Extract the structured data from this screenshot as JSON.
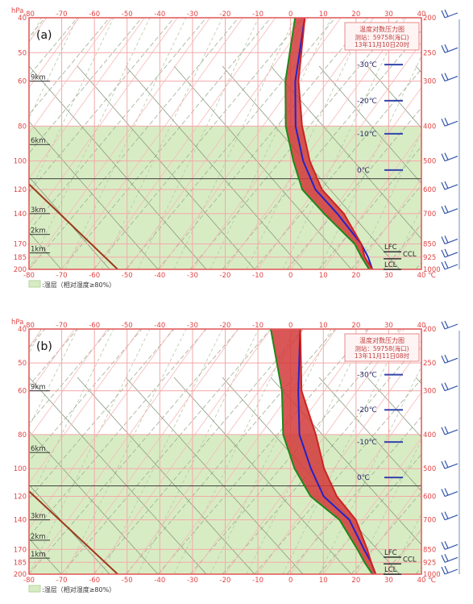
{
  "chart_data": [
    {
      "type": "line",
      "panel_label": "(a)",
      "box_title": "温度对数压力图",
      "box_station": "测站：59758(海口)",
      "box_time": "13年11月10日20时",
      "x_unit": "℃",
      "y_unit": "hPa",
      "x_ticks": [
        -80,
        -70,
        -60,
        -50,
        -40,
        -30,
        -20,
        -10,
        0,
        10,
        20,
        30,
        40
      ],
      "xlim": [
        -80,
        40
      ],
      "left_ticks": [
        "40",
        "50",
        "60",
        "80",
        "100",
        "120",
        "140",
        "170",
        "185",
        "200"
      ],
      "right_ticks": [
        "200",
        "250",
        "300",
        "400",
        "500",
        "600",
        "700",
        "850",
        "925",
        "1000"
      ],
      "height_labels": [
        "9km",
        "6km",
        "3km",
        "2km",
        "1km"
      ],
      "isotherms": [
        {
          "label": "-30℃",
          "value": -30
        },
        {
          "label": "-20℃",
          "value": -20
        },
        {
          "label": "-10℃",
          "value": -10
        },
        {
          "label": "0℃",
          "value": 0
        }
      ],
      "level_labels": [
        "EL",
        "LFC",
        "CCL",
        "LCL"
      ],
      "humid_bands_p": [
        [
          400,
          850
        ],
        [
          850,
          1000
        ]
      ],
      "series": [
        {
          "color": "#2222cc",
          "points": [
            [
              -51,
              200
            ],
            [
              -40,
              300
            ],
            [
              -30,
              400
            ],
            [
              -20,
              500
            ],
            [
              -10,
              600
            ],
            [
              2,
              700
            ],
            [
              16,
              850
            ],
            [
              21,
              925
            ],
            [
              25,
              1000
            ]
          ]
        },
        {
          "color": "#1b8a1b",
          "points": [
            [
              -54,
              200
            ],
            [
              -43,
              300
            ],
            [
              -33,
              400
            ],
            [
              -23,
              500
            ],
            [
              -14,
              600
            ],
            [
              -2,
              700
            ],
            [
              14,
              850
            ],
            [
              19,
              925
            ],
            [
              24,
              1000
            ]
          ]
        },
        {
          "color": "#cc2222",
          "points": [
            [
              -51,
              200
            ],
            [
              -39,
              300
            ],
            [
              -28,
              400
            ],
            [
              -18,
              500
            ],
            [
              -8,
              600
            ],
            [
              4,
              700
            ],
            [
              16,
              850
            ],
            [
              20,
              925
            ],
            [
              25,
              1000
            ]
          ]
        }
      ],
      "legend": ":湿层（相对湿度≥80%）"
    },
    {
      "type": "line",
      "panel_label": "(b)",
      "box_title": "温度对数压力图",
      "box_station": "测站：59758(海口)",
      "box_time": "13年11月11日08时",
      "x_unit": "℃",
      "y_unit": "hPa",
      "x_ticks": [
        -80,
        -70,
        -60,
        -50,
        -40,
        -30,
        -20,
        -10,
        0,
        10,
        20,
        30,
        40
      ],
      "xlim": [
        -80,
        40
      ],
      "left_ticks": [
        "40",
        "50",
        "60",
        "80",
        "100",
        "120",
        "140",
        "170",
        "185",
        "200"
      ],
      "right_ticks": [
        "200",
        "250",
        "300",
        "400",
        "500",
        "600",
        "700",
        "850",
        "925",
        "1000"
      ],
      "height_labels": [
        "9km",
        "6km",
        "3km",
        "2km",
        "1km"
      ],
      "isotherms": [
        {
          "label": "-30℃",
          "value": -30
        },
        {
          "label": "-20℃",
          "value": -20
        },
        {
          "label": "-10℃",
          "value": -10
        },
        {
          "label": "0℃",
          "value": 0
        }
      ],
      "level_labels": [
        "LFC",
        "CCL",
        "LCL"
      ],
      "humid_bands_p": [
        [
          400,
          1000
        ]
      ],
      "series": [
        {
          "color": "#2222cc",
          "points": [
            [
              -51,
              200
            ],
            [
              -38,
              300
            ],
            [
              -28,
              400
            ],
            [
              -17,
              500
            ],
            [
              -7,
              600
            ],
            [
              6,
              700
            ],
            [
              17,
              850
            ],
            [
              22,
              925
            ],
            [
              26,
              1000
            ]
          ]
        },
        {
          "color": "#1b8a1b",
          "points": [
            [
              -60,
              200
            ],
            [
              -43,
              300
            ],
            [
              -33,
              400
            ],
            [
              -22,
              500
            ],
            [
              -11,
              600
            ],
            [
              3,
              700
            ],
            [
              15,
              850
            ],
            [
              20,
              925
            ],
            [
              25,
              1000
            ]
          ]
        },
        {
          "color": "#cc2222",
          "points": [
            [
              -51,
              200
            ],
            [
              -37,
              300
            ],
            [
              -23,
              400
            ],
            [
              -13,
              500
            ],
            [
              -3,
              600
            ],
            [
              8,
              700
            ],
            [
              18,
              850
            ],
            [
              22,
              925
            ],
            [
              26,
              1000
            ]
          ]
        }
      ],
      "legend": ":湿层（相对湿度≥80%）"
    }
  ]
}
